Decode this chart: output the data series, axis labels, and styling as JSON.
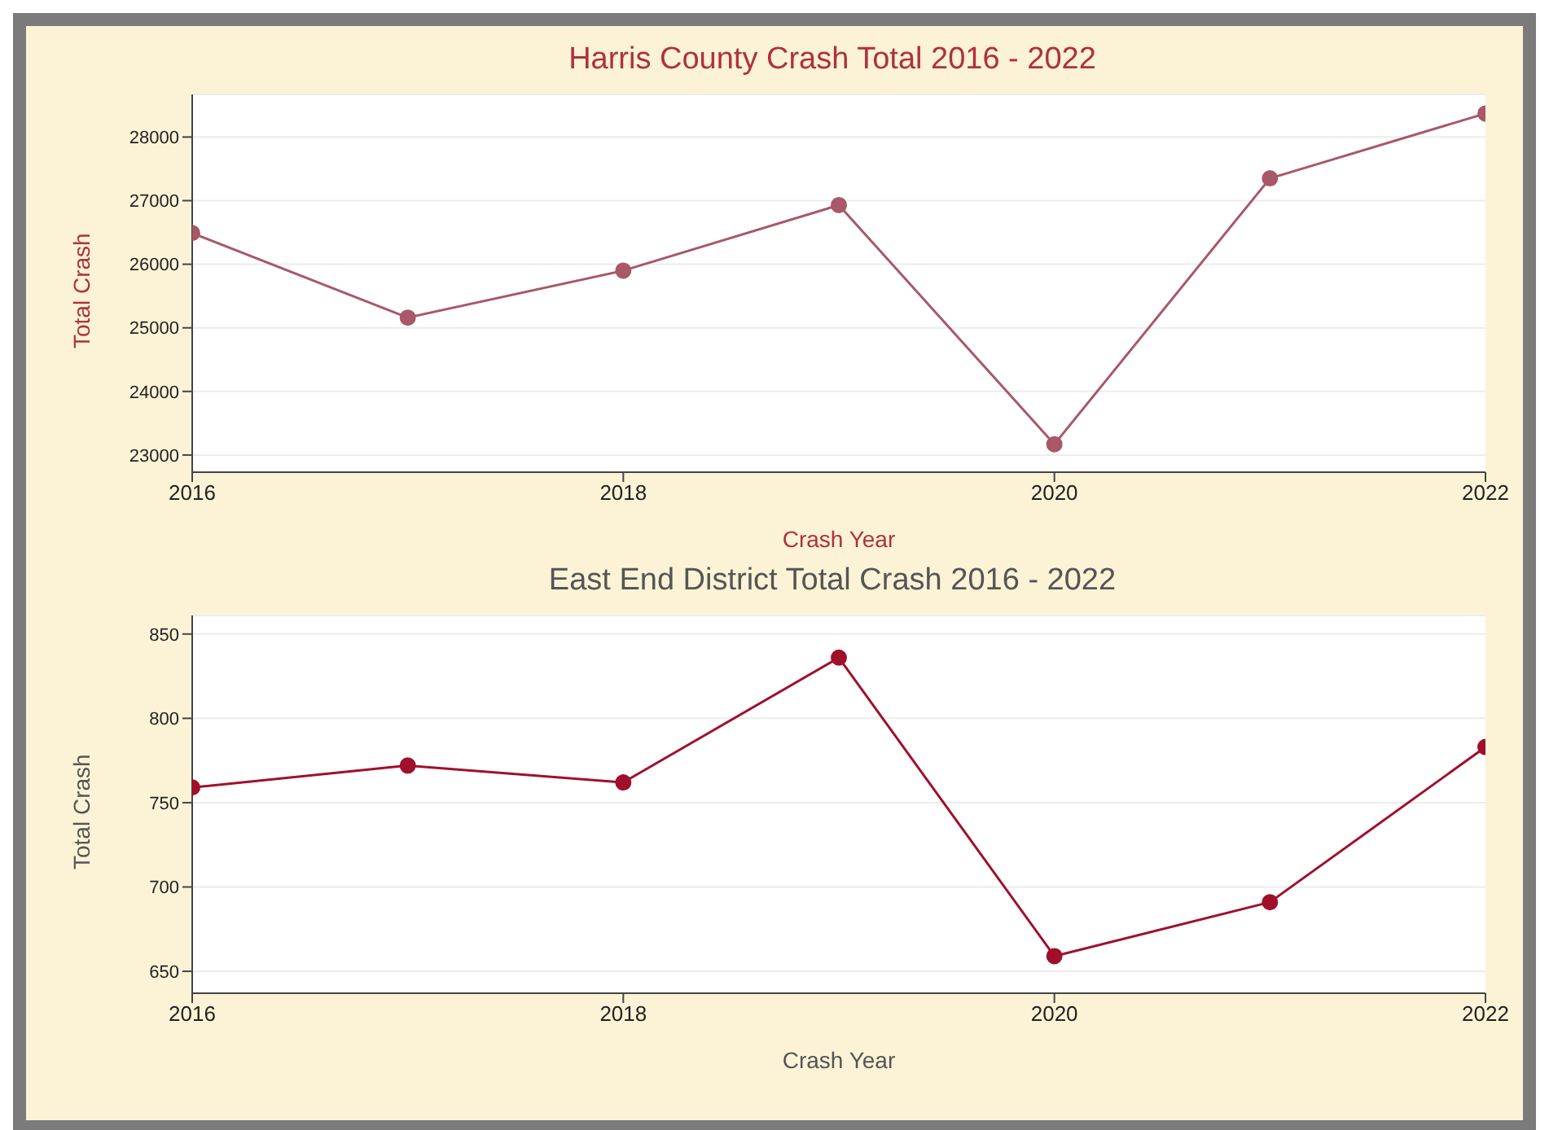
{
  "chart_data": [
    {
      "type": "line",
      "title": "Harris County Crash Total 2016 - 2022",
      "xlabel": "Crash Year",
      "ylabel": "Total Crash",
      "x": [
        2016,
        2017,
        2018,
        2019,
        2020,
        2021,
        2022
      ],
      "series": [
        {
          "color": "#a85868",
          "values": [
            26490,
            25160,
            25900,
            26930,
            23170,
            27350,
            28370
          ]
        }
      ],
      "xlim": [
        2016,
        2022
      ],
      "xticks": [
        2016,
        2018,
        2020,
        2022
      ],
      "ylim": [
        22730,
        28670
      ],
      "yticks": [
        23000,
        24000,
        25000,
        26000,
        27000,
        28000
      ],
      "grid": "y",
      "marker": "circle",
      "line_style": "solid",
      "legend": false
    },
    {
      "type": "line",
      "title": "East End District Total Crash 2016 - 2022",
      "xlabel": "Crash Year",
      "ylabel": "Total Crash",
      "x": [
        2016,
        2017,
        2018,
        2019,
        2020,
        2021,
        2022
      ],
      "series": [
        {
          "color": "#a0102a",
          "values": [
            759,
            772,
            762,
            836,
            659,
            691,
            783
          ]
        }
      ],
      "xlim": [
        2016,
        2022
      ],
      "xticks": [
        2016,
        2018,
        2020,
        2022
      ],
      "ylim": [
        637,
        861
      ],
      "yticks": [
        650,
        700,
        750,
        800,
        850
      ],
      "grid": "y",
      "marker": "circle",
      "line_style": "solid",
      "legend": false
    }
  ]
}
